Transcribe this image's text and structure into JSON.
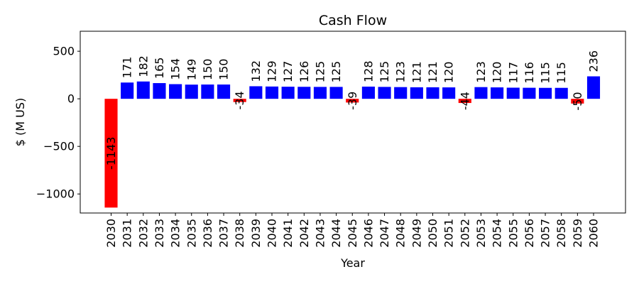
{
  "chart_data": {
    "type": "bar",
    "title": "Cash Flow",
    "xlabel": "Year",
    "ylabel": "$ (M US)",
    "categories": [
      "2030",
      "2031",
      "2032",
      "2033",
      "2034",
      "2035",
      "2036",
      "2037",
      "2038",
      "2039",
      "2040",
      "2041",
      "2042",
      "2043",
      "2044",
      "2045",
      "2046",
      "2047",
      "2048",
      "2049",
      "2050",
      "2051",
      "2052",
      "2053",
      "2054",
      "2055",
      "2056",
      "2057",
      "2058",
      "2059",
      "2060"
    ],
    "values": [
      -1143,
      171,
      182,
      165,
      154,
      149,
      150,
      150,
      -34,
      132,
      129,
      127,
      126,
      125,
      125,
      -39,
      128,
      125,
      123,
      121,
      121,
      120,
      -44,
      123,
      120,
      117,
      116,
      115,
      115,
      -50,
      236
    ],
    "data_labels": [
      "-1143",
      "171",
      "182",
      "165",
      "154",
      "149",
      "150",
      "150",
      "-34",
      "132",
      "129",
      "127",
      "126",
      "125",
      "125",
      "-39",
      "128",
      "125",
      "123",
      "121",
      "121",
      "120",
      "-44",
      "123",
      "120",
      "117",
      "116",
      "115",
      "115",
      "-50",
      "236"
    ],
    "ylim": [
      -1200,
      710
    ],
    "yticks": [
      -1000,
      -500,
      0,
      500
    ],
    "ytick_labels": [
      "−1000",
      "−500",
      "0",
      "500"
    ],
    "grid": false,
    "legend": "none",
    "colors": {
      "positive": "#0000ff",
      "negative": "#ff0000"
    }
  }
}
